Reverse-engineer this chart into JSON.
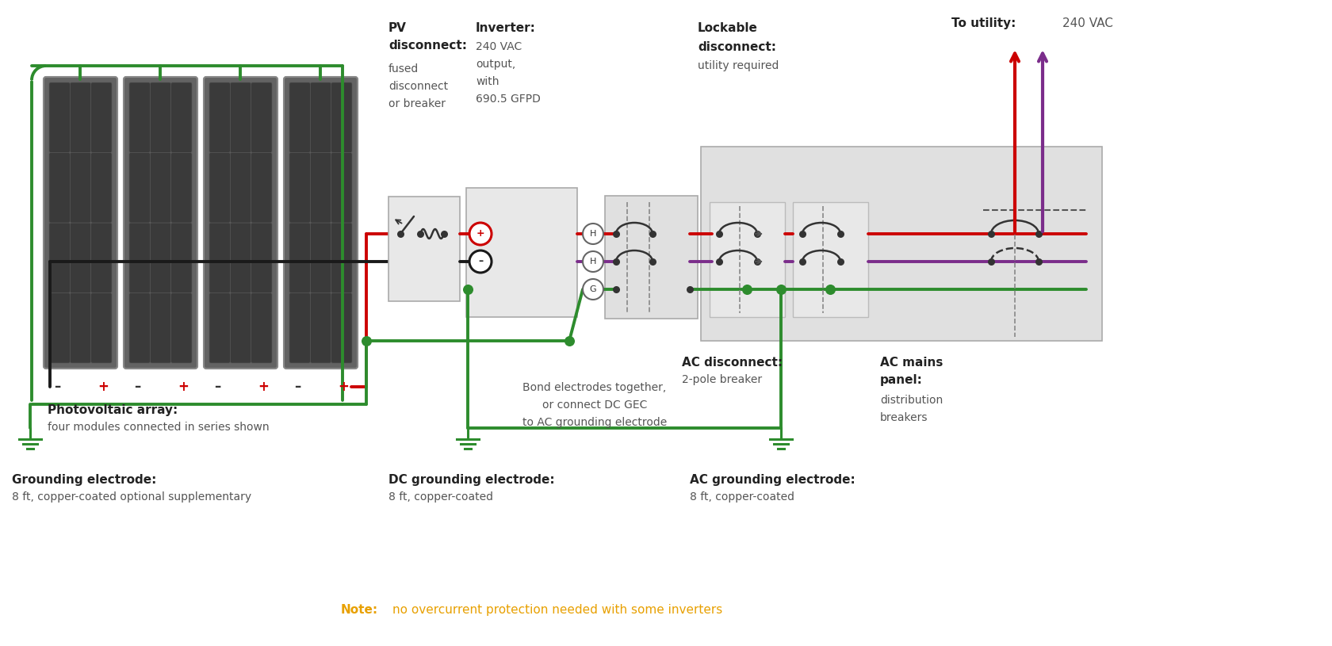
{
  "bg_color": "#ffffff",
  "wire_red": "#cc0000",
  "wire_black": "#1a1a1a",
  "wire_green": "#2d8c2d",
  "wire_purple": "#7b2d8b",
  "text_dark": "#222222",
  "text_gray": "#555555",
  "note_color": "#e8a000",
  "panel_gray": "#e4e4e4",
  "solar_outer": "#636363",
  "solar_cell": "#3a3a3a",
  "labels": {
    "pv_array_bold": "Photovoltaic array:",
    "pv_array_sub": "four modules connected in series shown",
    "ground1_bold": "Grounding electrode:",
    "ground1_sub": "8 ft, copper-coated optional supplementary",
    "pv_disc_line1": "PV",
    "pv_disc_line2": "disconnect:",
    "pv_disc_sub1": "fused",
    "pv_disc_sub2": "disconnect",
    "pv_disc_sub3": "or breaker",
    "inv_bold": "Inverter:",
    "inv_sub1": "240 VAC",
    "inv_sub2": "output,",
    "inv_sub3": "with",
    "inv_sub4": "690.5 GFPD",
    "lock_bold1": "Lockable",
    "lock_bold2": "disconnect:",
    "lock_sub": "utility required",
    "ac_disc_bold": "AC disconnect:",
    "ac_disc_sub": "2-pole breaker",
    "ac_mains_bold1": "AC mains",
    "ac_mains_bold2": "panel:",
    "ac_mains_sub1": "distribution",
    "ac_mains_sub2": "breakers",
    "to_util_bold": "To utility:",
    "to_util_val": "240 VAC",
    "dc_gnd_bold": "DC grounding electrode:",
    "dc_gnd_sub": "8 ft, copper-coated",
    "ac_gnd_bold": "AC grounding electrode:",
    "ac_gnd_sub": "8 ft, copper-coated",
    "bond1": "Bond electrodes together,",
    "bond2": "or connect DC GEC",
    "bond3": "to AC grounding electrode",
    "note_bold": "Note:",
    "note_rest": "no overcurrent protection needed with some inverters"
  }
}
